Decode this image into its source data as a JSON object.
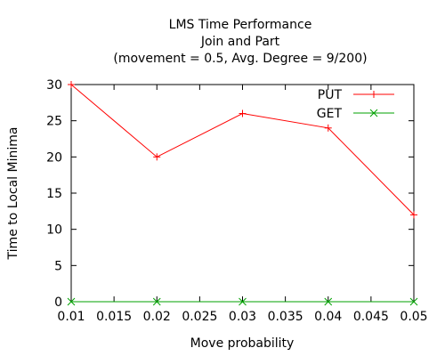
{
  "chart_data": {
    "type": "line",
    "title": [
      "LMS Time Performance",
      "Join and Part",
      "(movement = 0.5, Avg. Degree = 9/200)"
    ],
    "xlabel": "Move probability",
    "ylabel": "Time to Local Minima",
    "x": [
      0.01,
      0.02,
      0.03,
      0.04,
      0.05
    ],
    "xlim": [
      0.01,
      0.05
    ],
    "ylim": [
      0,
      30
    ],
    "xticks": [
      "0.01",
      "0.015",
      "0.02",
      "0.025",
      "0.03",
      "0.035",
      "0.04",
      "0.045",
      "0.05"
    ],
    "yticks": [
      "0",
      "5",
      "10",
      "15",
      "20",
      "25",
      "30"
    ],
    "grid": false,
    "legend_position": "top-right",
    "series": [
      {
        "name": "PUT",
        "values": [
          30,
          20,
          26,
          24,
          12
        ],
        "color": "#ff0000",
        "marker": "plus"
      },
      {
        "name": "GET",
        "values": [
          0,
          0,
          0,
          0,
          0
        ],
        "color": "#00a000",
        "marker": "cross"
      }
    ]
  }
}
